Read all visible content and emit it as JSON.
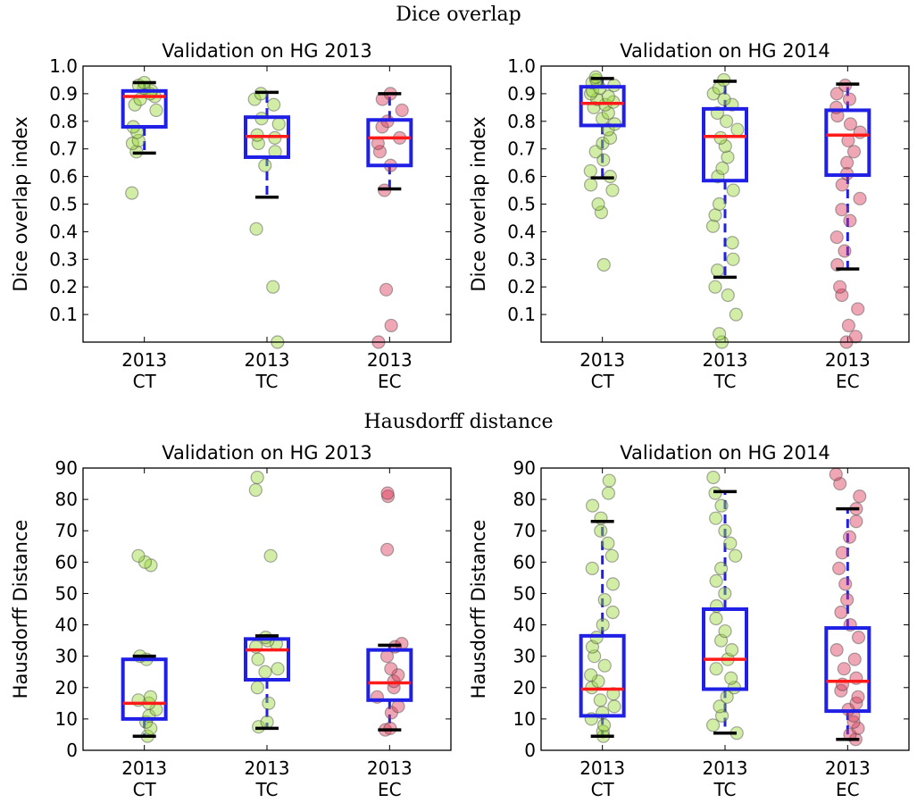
{
  "titles": {
    "dice": "Dice overlap",
    "hausdorff": "Hausdorff distance"
  },
  "colors": {
    "box": "#1f1fe6",
    "median": "#ff1a1a",
    "whisker_cap": "#000000",
    "point_ct_tc": "#9ad83a",
    "point_ec": "#dc3c5a"
  },
  "chart_data": [
    {
      "type": "box",
      "title": "Validation on HG 2013",
      "ylabel": "Dice overlap index",
      "ylim": [
        0,
        1.0
      ],
      "yticks": [
        "0.1",
        "0.2",
        "0.3",
        "0.4",
        "0.5",
        "0.6",
        "0.7",
        "0.8",
        "0.9",
        "1.0"
      ],
      "categories": [
        [
          "2013",
          "CT"
        ],
        [
          "2013",
          "TC"
        ],
        [
          "2013",
          "EC"
        ]
      ],
      "boxes": [
        {
          "q1": 0.78,
          "median": 0.89,
          "q3": 0.91,
          "whisker_low": 0.685,
          "whisker_high": 0.94,
          "points": [
            0.54,
            0.69,
            0.72,
            0.73,
            0.76,
            0.78,
            0.84,
            0.86,
            0.88,
            0.89,
            0.9,
            0.91,
            0.92,
            0.93,
            0.94
          ]
        },
        {
          "q1": 0.67,
          "median": 0.745,
          "q3": 0.815,
          "whisker_low": 0.525,
          "whisker_high": 0.905,
          "points": [
            0.0,
            0.2,
            0.41,
            0.64,
            0.69,
            0.72,
            0.74,
            0.75,
            0.79,
            0.81,
            0.86,
            0.88,
            0.9
          ]
        },
        {
          "q1": 0.64,
          "median": 0.74,
          "q3": 0.805,
          "whisker_low": 0.555,
          "whisker_high": 0.9,
          "points": [
            0.0,
            0.06,
            0.19,
            0.55,
            0.64,
            0.69,
            0.72,
            0.74,
            0.78,
            0.8,
            0.84,
            0.88,
            0.9
          ]
        }
      ]
    },
    {
      "type": "box",
      "title": "Validation on HG 2014",
      "ylabel": "Dice overlap index",
      "ylim": [
        0,
        1.0
      ],
      "yticks": [
        "0.1",
        "0.2",
        "0.3",
        "0.4",
        "0.5",
        "0.6",
        "0.7",
        "0.8",
        "0.9",
        "1.0"
      ],
      "categories": [
        [
          "2013",
          "CT"
        ],
        [
          "2013",
          "TC"
        ],
        [
          "2013",
          "EC"
        ]
      ],
      "boxes": [
        {
          "q1": 0.785,
          "median": 0.865,
          "q3": 0.925,
          "whisker_low": 0.595,
          "whisker_high": 0.955,
          "points": [
            0.28,
            0.47,
            0.5,
            0.55,
            0.57,
            0.6,
            0.62,
            0.66,
            0.69,
            0.72,
            0.74,
            0.77,
            0.79,
            0.81,
            0.83,
            0.85,
            0.86,
            0.87,
            0.88,
            0.89,
            0.9,
            0.91,
            0.92,
            0.93,
            0.94,
            0.95,
            0.96
          ]
        },
        {
          "q1": 0.585,
          "median": 0.745,
          "q3": 0.845,
          "whisker_low": 0.235,
          "whisker_high": 0.945,
          "points": [
            0.0,
            0.03,
            0.1,
            0.17,
            0.2,
            0.26,
            0.3,
            0.36,
            0.42,
            0.46,
            0.5,
            0.55,
            0.6,
            0.63,
            0.67,
            0.71,
            0.74,
            0.77,
            0.8,
            0.83,
            0.86,
            0.88,
            0.9,
            0.92,
            0.95
          ]
        },
        {
          "q1": 0.605,
          "median": 0.75,
          "q3": 0.84,
          "whisker_low": 0.265,
          "whisker_high": 0.935,
          "points": [
            0.0,
            0.02,
            0.06,
            0.12,
            0.17,
            0.2,
            0.28,
            0.33,
            0.38,
            0.44,
            0.48,
            0.52,
            0.57,
            0.61,
            0.65,
            0.69,
            0.73,
            0.76,
            0.79,
            0.82,
            0.85,
            0.88,
            0.9,
            0.93
          ]
        }
      ]
    },
    {
      "type": "box",
      "title": "Validation on HG 2013",
      "ylabel": "Hausdorff Distance",
      "ylim": [
        0,
        90
      ],
      "yticks": [
        "0",
        "10",
        "20",
        "30",
        "40",
        "50",
        "60",
        "70",
        "80",
        "90"
      ],
      "categories": [
        [
          "2013",
          "CT"
        ],
        [
          "2013",
          "TC"
        ],
        [
          "2013",
          "EC"
        ]
      ],
      "boxes": [
        {
          "q1": 10,
          "median": 15,
          "q3": 29,
          "whisker_low": 4.5,
          "whisker_high": 30,
          "points": [
            4.5,
            7,
            9,
            11,
            13,
            15,
            16,
            17,
            29,
            30,
            59,
            60,
            62
          ]
        },
        {
          "q1": 22.5,
          "median": 32,
          "q3": 35.5,
          "whisker_low": 7,
          "whisker_high": 36.5,
          "points": [
            7.5,
            9,
            15,
            20,
            25,
            26,
            29,
            33,
            34,
            35,
            36,
            62,
            83,
            87
          ]
        },
        {
          "q1": 16,
          "median": 21.5,
          "q3": 32,
          "whisker_low": 6.5,
          "whisker_high": 33.5,
          "points": [
            6.5,
            7,
            12,
            14,
            17,
            20,
            22,
            24,
            26,
            30,
            33,
            34,
            64,
            81,
            82
          ]
        }
      ]
    },
    {
      "type": "box",
      "title": "Validation on HG 2014",
      "ylabel": "Hausdorff Distance",
      "ylim": [
        0,
        90
      ],
      "yticks": [
        "0",
        "10",
        "20",
        "30",
        "40",
        "50",
        "60",
        "70",
        "80",
        "90"
      ],
      "categories": [
        [
          "2013",
          "CT"
        ],
        [
          "2013",
          "TC"
        ],
        [
          "2013",
          "EC"
        ]
      ],
      "boxes": [
        {
          "q1": 11,
          "median": 19.5,
          "q3": 36.5,
          "whisker_low": 4.5,
          "whisker_high": 73,
          "points": [
            4.5,
            6,
            8,
            10,
            12,
            14,
            16,
            18,
            20,
            22,
            24,
            27,
            30,
            33,
            36,
            40,
            44,
            48,
            53,
            58,
            62,
            66,
            70,
            74,
            78,
            82,
            86
          ]
        },
        {
          "q1": 19.5,
          "median": 29,
          "q3": 45,
          "whisker_low": 5.5,
          "whisker_high": 82.5,
          "points": [
            5.5,
            8,
            11,
            14,
            17,
            20,
            23,
            26,
            29,
            32,
            35,
            38,
            42,
            46,
            50,
            54,
            58,
            62,
            66,
            70,
            74,
            78,
            82,
            87
          ]
        },
        {
          "q1": 12.5,
          "median": 22,
          "q3": 39,
          "whisker_low": 3.5,
          "whisker_high": 77,
          "points": [
            3.5,
            5,
            7,
            9,
            11,
            13,
            15,
            17,
            19,
            21,
            23,
            26,
            29,
            32,
            36,
            40,
            44,
            48,
            53,
            58,
            63,
            68,
            73,
            77,
            81,
            85,
            88
          ]
        }
      ]
    }
  ]
}
